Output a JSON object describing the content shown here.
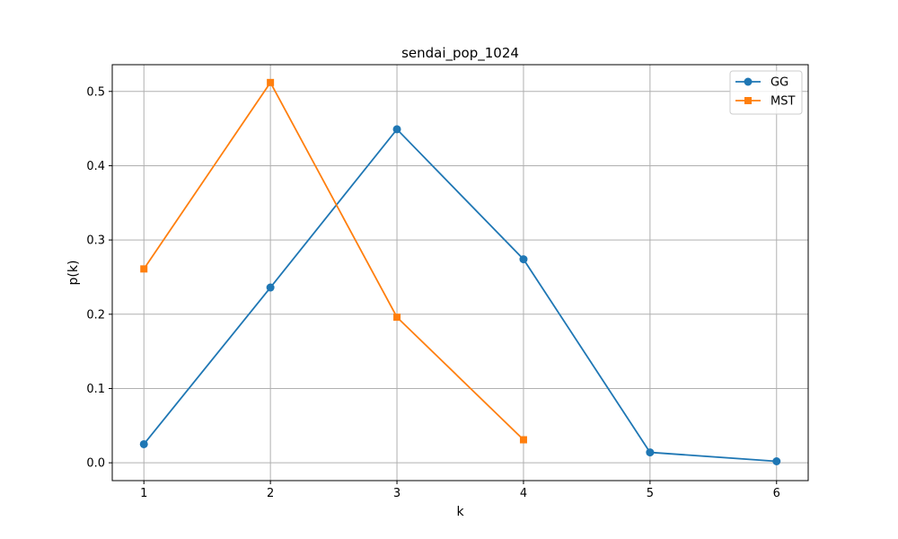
{
  "chart_data": {
    "type": "line",
    "title": "sendai_pop_1024",
    "xlabel": "k",
    "ylabel": "p(k)",
    "xlim": [
      0.75,
      6.25
    ],
    "ylim": [
      -0.024,
      0.536
    ],
    "xticks": [
      1,
      2,
      3,
      4,
      5,
      6
    ],
    "yticks": [
      0.0,
      0.1,
      0.2,
      0.3,
      0.4,
      0.5
    ],
    "xtick_labels": [
      "1",
      "2",
      "3",
      "4",
      "5",
      "6"
    ],
    "ytick_labels": [
      "0.0",
      "0.1",
      "0.2",
      "0.3",
      "0.4",
      "0.5"
    ],
    "grid": true,
    "legend_position": "top-right",
    "series": [
      {
        "name": "GG",
        "color": "#1f77b4",
        "marker": "circle",
        "x": [
          1,
          2,
          3,
          4,
          5,
          6
        ],
        "y": [
          0.025,
          0.236,
          0.449,
          0.274,
          0.014,
          0.002
        ]
      },
      {
        "name": "MST",
        "color": "#ff7f0e",
        "marker": "square",
        "x": [
          1,
          2,
          3,
          4
        ],
        "y": [
          0.261,
          0.512,
          0.196,
          0.031
        ]
      }
    ]
  }
}
